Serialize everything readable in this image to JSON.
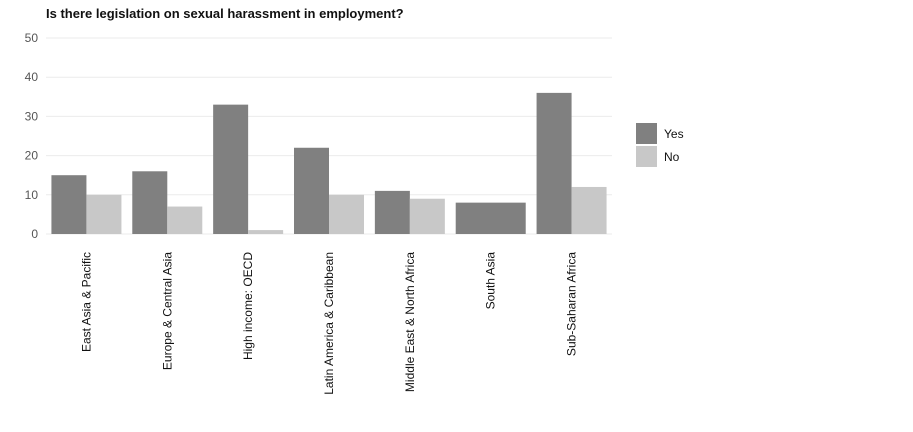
{
  "chart_data": {
    "type": "bar",
    "title": "Is there legislation on sexual harassment in employment?",
    "xlabel": "",
    "ylabel": "",
    "ylim": [
      0,
      50
    ],
    "yticks": [
      0,
      10,
      20,
      30,
      40,
      50
    ],
    "grid": true,
    "legend_position": "right",
    "categories": [
      "East Asia & Pacific",
      "Europe & Central Asia",
      "High income: OECD",
      "Latin America & Caribbean",
      "Middle East & North Africa",
      "South Asia",
      "Sub-Saharan Africa"
    ],
    "series": [
      {
        "name": "Yes",
        "color": "#808080",
        "values": [
          15,
          16,
          33,
          22,
          11,
          8,
          36
        ]
      },
      {
        "name": "No",
        "color": "#c8c8c8",
        "values": [
          10,
          7,
          1,
          10,
          9,
          null,
          12
        ]
      }
    ]
  }
}
